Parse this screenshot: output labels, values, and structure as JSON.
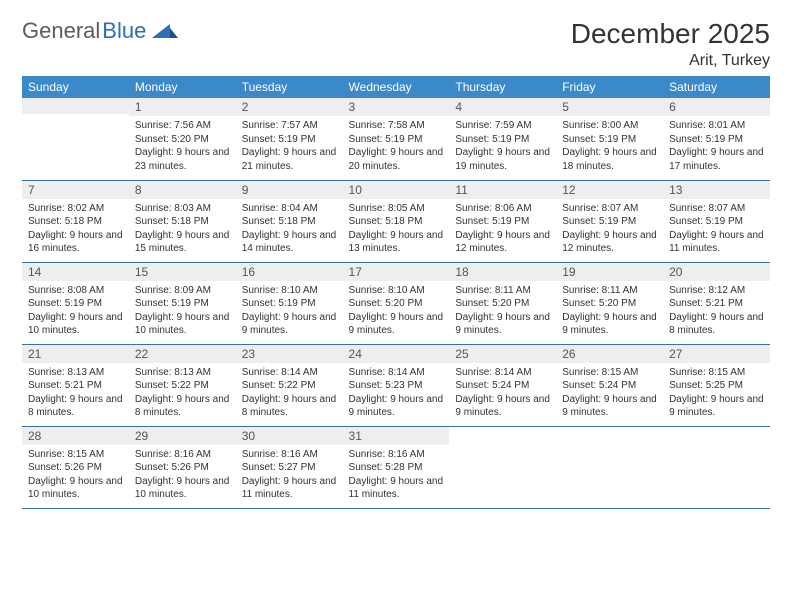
{
  "logo": {
    "text_general": "General",
    "text_blue": "Blue"
  },
  "title": "December 2025",
  "location": "Arit, Turkey",
  "colors": {
    "header_bg": "#3b89c9",
    "header_text": "#ffffff",
    "daynum_bg": "#eeeeee",
    "row_divider": "#3b6fa3",
    "text": "#333333",
    "logo_gray": "#5c5c5c",
    "logo_blue": "#2e6eb5"
  },
  "weekdays": [
    "Sunday",
    "Monday",
    "Tuesday",
    "Wednesday",
    "Thursday",
    "Friday",
    "Saturday"
  ],
  "weeks": [
    [
      null,
      {
        "n": "1",
        "sr": "7:56 AM",
        "ss": "5:20 PM",
        "dl": "9 hours and 23 minutes."
      },
      {
        "n": "2",
        "sr": "7:57 AM",
        "ss": "5:19 PM",
        "dl": "9 hours and 21 minutes."
      },
      {
        "n": "3",
        "sr": "7:58 AM",
        "ss": "5:19 PM",
        "dl": "9 hours and 20 minutes."
      },
      {
        "n": "4",
        "sr": "7:59 AM",
        "ss": "5:19 PM",
        "dl": "9 hours and 19 minutes."
      },
      {
        "n": "5",
        "sr": "8:00 AM",
        "ss": "5:19 PM",
        "dl": "9 hours and 18 minutes."
      },
      {
        "n": "6",
        "sr": "8:01 AM",
        "ss": "5:19 PM",
        "dl": "9 hours and 17 minutes."
      }
    ],
    [
      {
        "n": "7",
        "sr": "8:02 AM",
        "ss": "5:18 PM",
        "dl": "9 hours and 16 minutes."
      },
      {
        "n": "8",
        "sr": "8:03 AM",
        "ss": "5:18 PM",
        "dl": "9 hours and 15 minutes."
      },
      {
        "n": "9",
        "sr": "8:04 AM",
        "ss": "5:18 PM",
        "dl": "9 hours and 14 minutes."
      },
      {
        "n": "10",
        "sr": "8:05 AM",
        "ss": "5:18 PM",
        "dl": "9 hours and 13 minutes."
      },
      {
        "n": "11",
        "sr": "8:06 AM",
        "ss": "5:19 PM",
        "dl": "9 hours and 12 minutes."
      },
      {
        "n": "12",
        "sr": "8:07 AM",
        "ss": "5:19 PM",
        "dl": "9 hours and 12 minutes."
      },
      {
        "n": "13",
        "sr": "8:07 AM",
        "ss": "5:19 PM",
        "dl": "9 hours and 11 minutes."
      }
    ],
    [
      {
        "n": "14",
        "sr": "8:08 AM",
        "ss": "5:19 PM",
        "dl": "9 hours and 10 minutes."
      },
      {
        "n": "15",
        "sr": "8:09 AM",
        "ss": "5:19 PM",
        "dl": "9 hours and 10 minutes."
      },
      {
        "n": "16",
        "sr": "8:10 AM",
        "ss": "5:19 PM",
        "dl": "9 hours and 9 minutes."
      },
      {
        "n": "17",
        "sr": "8:10 AM",
        "ss": "5:20 PM",
        "dl": "9 hours and 9 minutes."
      },
      {
        "n": "18",
        "sr": "8:11 AM",
        "ss": "5:20 PM",
        "dl": "9 hours and 9 minutes."
      },
      {
        "n": "19",
        "sr": "8:11 AM",
        "ss": "5:20 PM",
        "dl": "9 hours and 9 minutes."
      },
      {
        "n": "20",
        "sr": "8:12 AM",
        "ss": "5:21 PM",
        "dl": "9 hours and 8 minutes."
      }
    ],
    [
      {
        "n": "21",
        "sr": "8:13 AM",
        "ss": "5:21 PM",
        "dl": "9 hours and 8 minutes."
      },
      {
        "n": "22",
        "sr": "8:13 AM",
        "ss": "5:22 PM",
        "dl": "9 hours and 8 minutes."
      },
      {
        "n": "23",
        "sr": "8:14 AM",
        "ss": "5:22 PM",
        "dl": "9 hours and 8 minutes."
      },
      {
        "n": "24",
        "sr": "8:14 AM",
        "ss": "5:23 PM",
        "dl": "9 hours and 9 minutes."
      },
      {
        "n": "25",
        "sr": "8:14 AM",
        "ss": "5:24 PM",
        "dl": "9 hours and 9 minutes."
      },
      {
        "n": "26",
        "sr": "8:15 AM",
        "ss": "5:24 PM",
        "dl": "9 hours and 9 minutes."
      },
      {
        "n": "27",
        "sr": "8:15 AM",
        "ss": "5:25 PM",
        "dl": "9 hours and 9 minutes."
      }
    ],
    [
      {
        "n": "28",
        "sr": "8:15 AM",
        "ss": "5:26 PM",
        "dl": "9 hours and 10 minutes."
      },
      {
        "n": "29",
        "sr": "8:16 AM",
        "ss": "5:26 PM",
        "dl": "9 hours and 10 minutes."
      },
      {
        "n": "30",
        "sr": "8:16 AM",
        "ss": "5:27 PM",
        "dl": "9 hours and 11 minutes."
      },
      {
        "n": "31",
        "sr": "8:16 AM",
        "ss": "5:28 PM",
        "dl": "9 hours and 11 minutes."
      },
      null,
      null,
      null
    ]
  ],
  "labels": {
    "sunrise": "Sunrise:",
    "sunset": "Sunset:",
    "daylight": "Daylight:"
  }
}
